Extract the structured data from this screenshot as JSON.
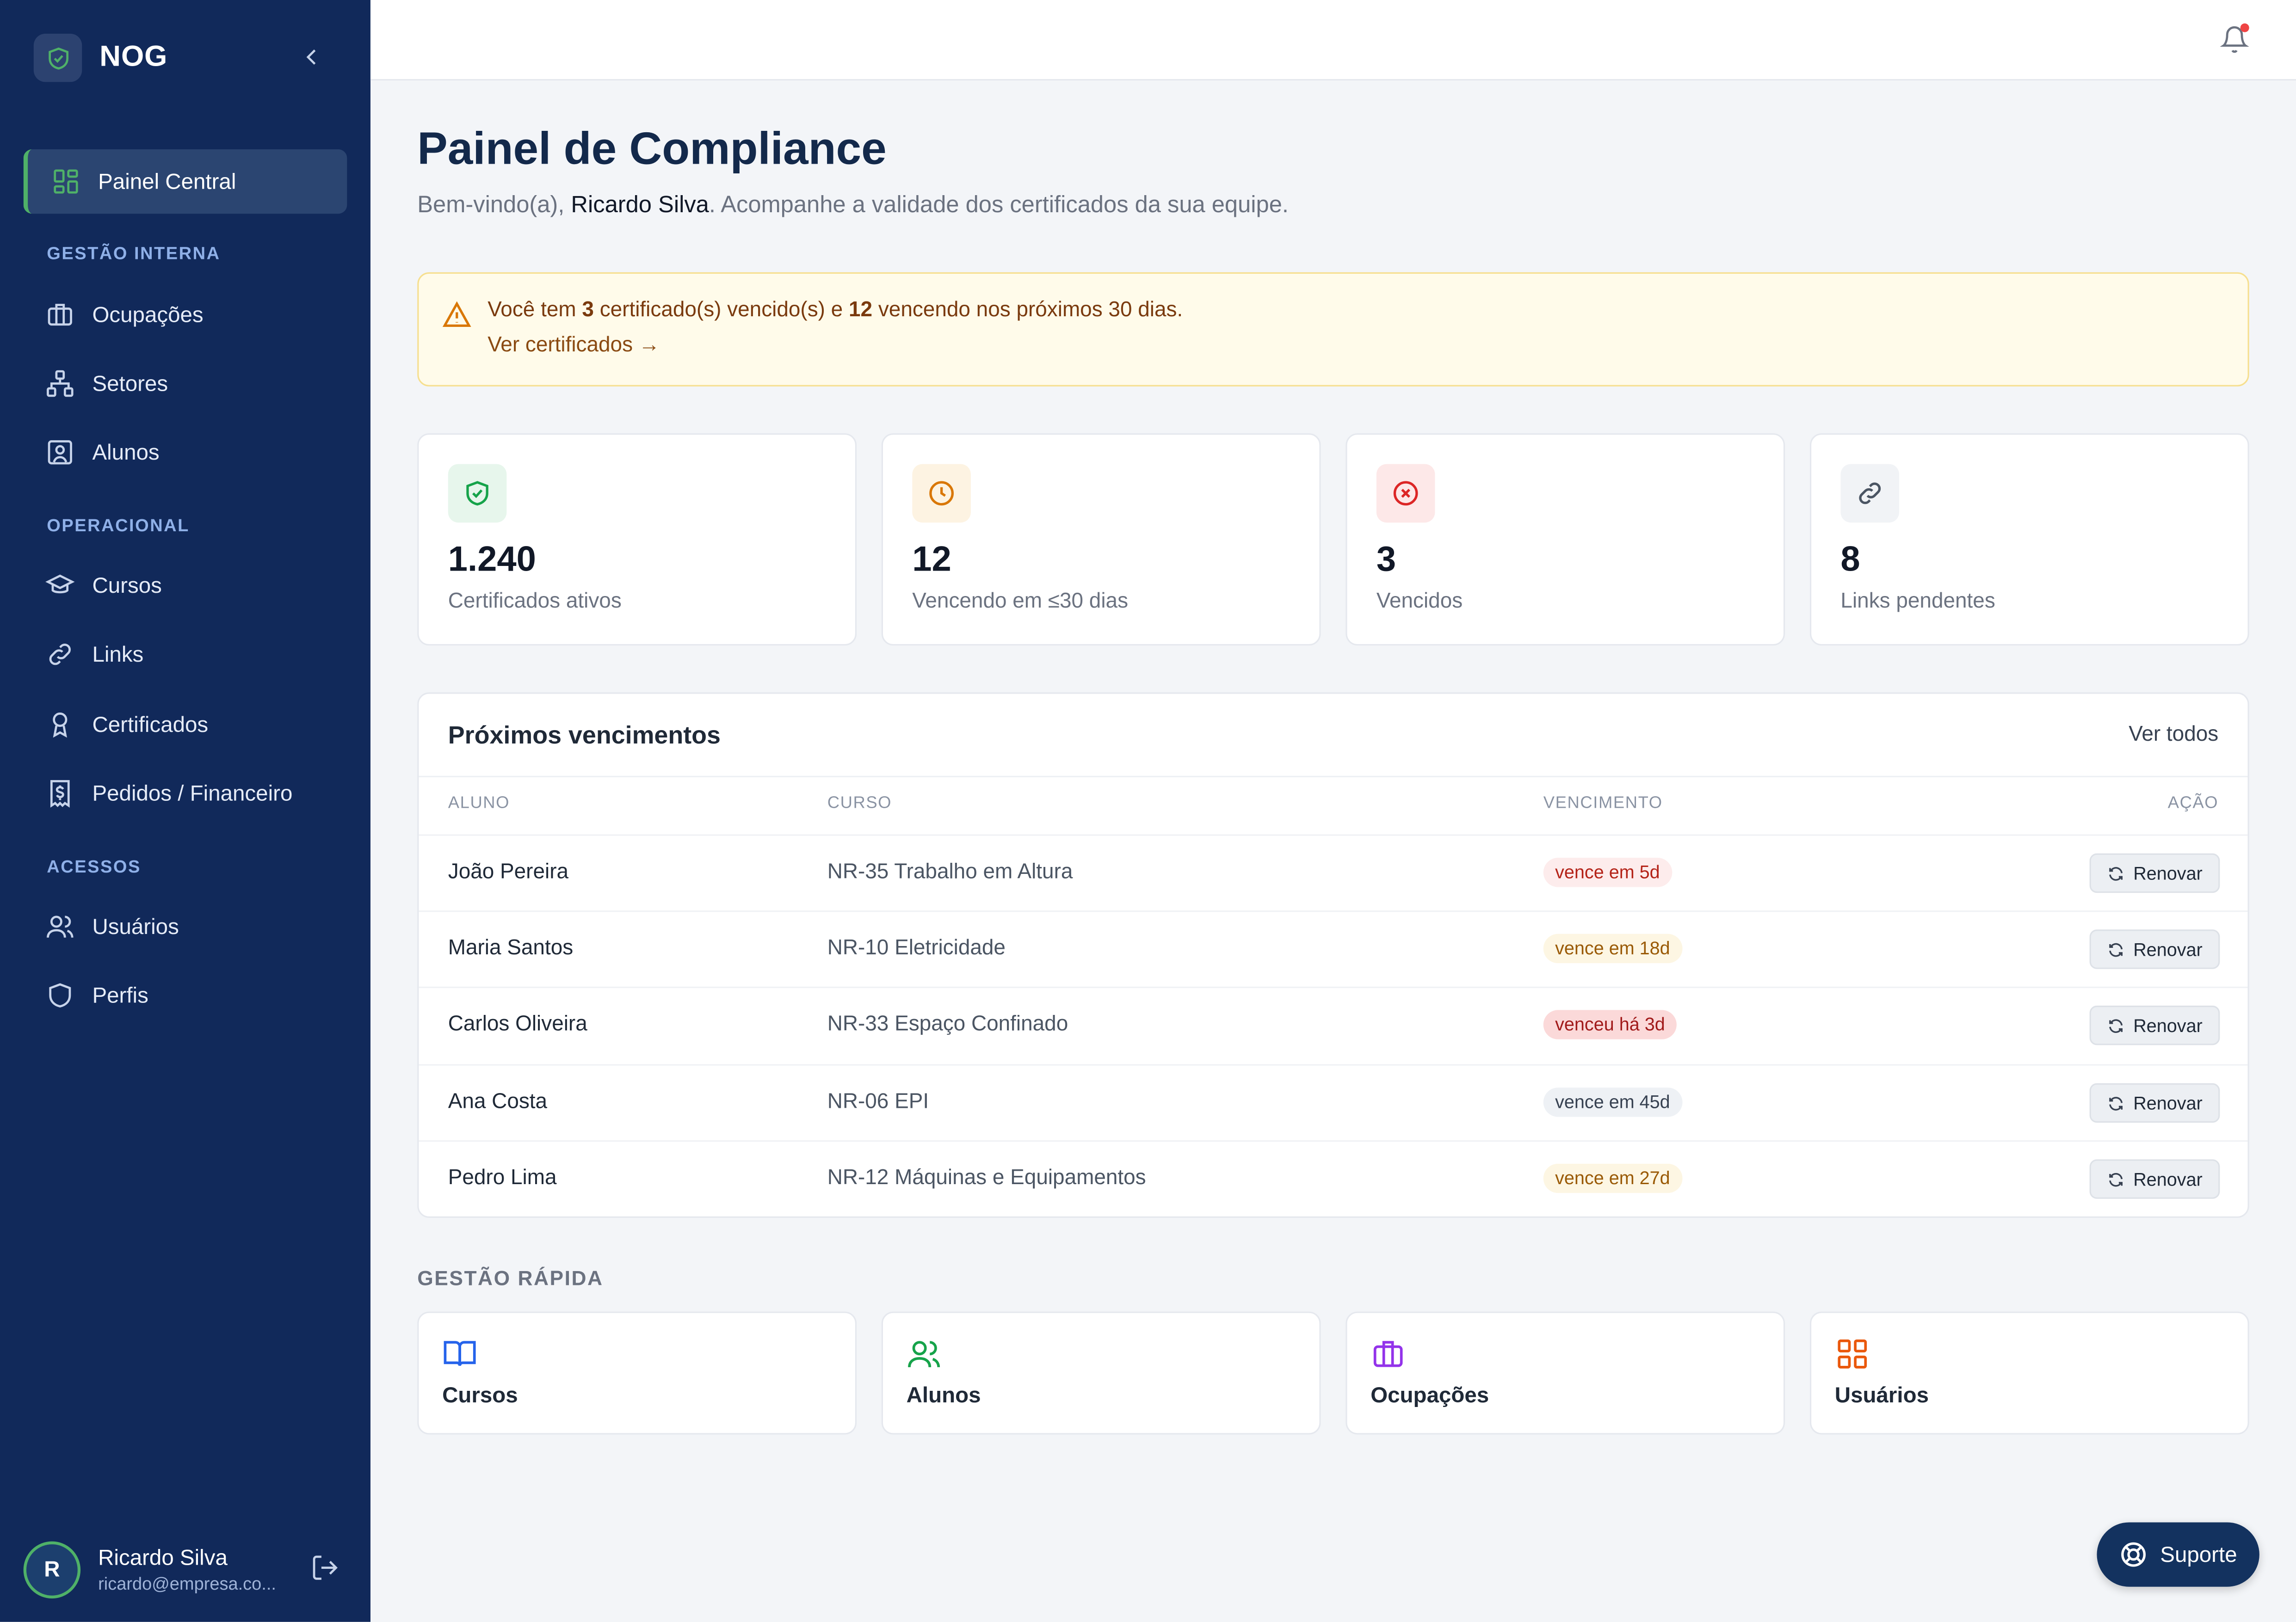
{
  "app": {
    "name": "NOG"
  },
  "sidebar": {
    "active_item": "Painel Central",
    "sections": [
      {
        "title": "GESTÃO INTERNA",
        "items": [
          "Ocupações",
          "Setores",
          "Alunos"
        ]
      },
      {
        "title": "OPERACIONAL",
        "items": [
          "Cursos",
          "Links",
          "Certificados",
          "Pedidos / Financeiro"
        ]
      },
      {
        "title": "ACESSOS",
        "items": [
          "Usuários",
          "Perfis"
        ]
      }
    ],
    "user": {
      "initial": "R",
      "name": "Ricardo Silva",
      "email": "ricardo@empresa.co..."
    }
  },
  "header": {
    "title": "Painel de Compliance",
    "welcome_prefix": "Bem-vindo(a), ",
    "user_name": "Ricardo Silva",
    "welcome_suffix": ". Acompanhe a validade dos certificados da sua equipe."
  },
  "alert": {
    "prefix": "Você tem ",
    "expired": "3",
    "middle": " certificado(s) vencido(s) e ",
    "expiring": "12",
    "suffix": " vencendo nos próximos 30 dias.",
    "link": "Ver certificados →"
  },
  "stats": [
    {
      "value": "1.240",
      "label": "Certificados ativos",
      "icon": "shield-check-icon",
      "color": "#16a34a",
      "bg": "#e7f6ec"
    },
    {
      "value": "12",
      "label": "Vencendo em ≤30 dias",
      "icon": "clock-icon",
      "color": "#d97706",
      "bg": "#fdf3e2"
    },
    {
      "value": "3",
      "label": "Vencidos",
      "icon": "x-circle-icon",
      "color": "#dc2626",
      "bg": "#fde8e8"
    },
    {
      "value": "8",
      "label": "Links pendentes",
      "icon": "link-icon",
      "color": "#4b5563",
      "bg": "#f1f3f6"
    }
  ],
  "table": {
    "title": "Próximos vencimentos",
    "view_all": "Ver todos",
    "headers": {
      "student": "ALUNO",
      "course": "CURSO",
      "due": "VENCIMENTO",
      "action": "AÇÃO"
    },
    "rows": [
      {
        "student": "João Pereira",
        "course": "NR-35 Trabalho em Altura",
        "due": "vence em 5d",
        "status": "urgent",
        "action": "Renovar"
      },
      {
        "student": "Maria Santos",
        "course": "NR-10 Eletricidade",
        "due": "vence em 18d",
        "status": "warning",
        "action": "Renovar"
      },
      {
        "student": "Carlos Oliveira",
        "course": "NR-33 Espaço Confinado",
        "due": "venceu há 3d",
        "status": "expired",
        "action": "Renovar"
      },
      {
        "student": "Ana Costa",
        "course": "NR-06 EPI",
        "due": "vence em 45d",
        "status": "neutral",
        "action": "Renovar"
      },
      {
        "student": "Pedro Lima",
        "course": "NR-12 Máquinas e Equipamentos",
        "due": "vence em 27d",
        "status": "warning",
        "action": "Renovar"
      }
    ]
  },
  "quick": {
    "title": "GESTÃO RÁPIDA",
    "items": [
      {
        "label": "Cursos",
        "icon": "book-icon",
        "color": "#2563eb"
      },
      {
        "label": "Alunos",
        "icon": "users-icon",
        "color": "#16a34a"
      },
      {
        "label": "Ocupações",
        "icon": "briefcase-icon",
        "color": "#9333ea"
      },
      {
        "label": "Usuários",
        "icon": "grid-icon",
        "color": "#ea580c"
      }
    ]
  },
  "support": {
    "label": "Suporte"
  },
  "colors": {
    "sidebar": "#11295a",
    "accent_green": "#4fb168",
    "title": "#13294b"
  }
}
